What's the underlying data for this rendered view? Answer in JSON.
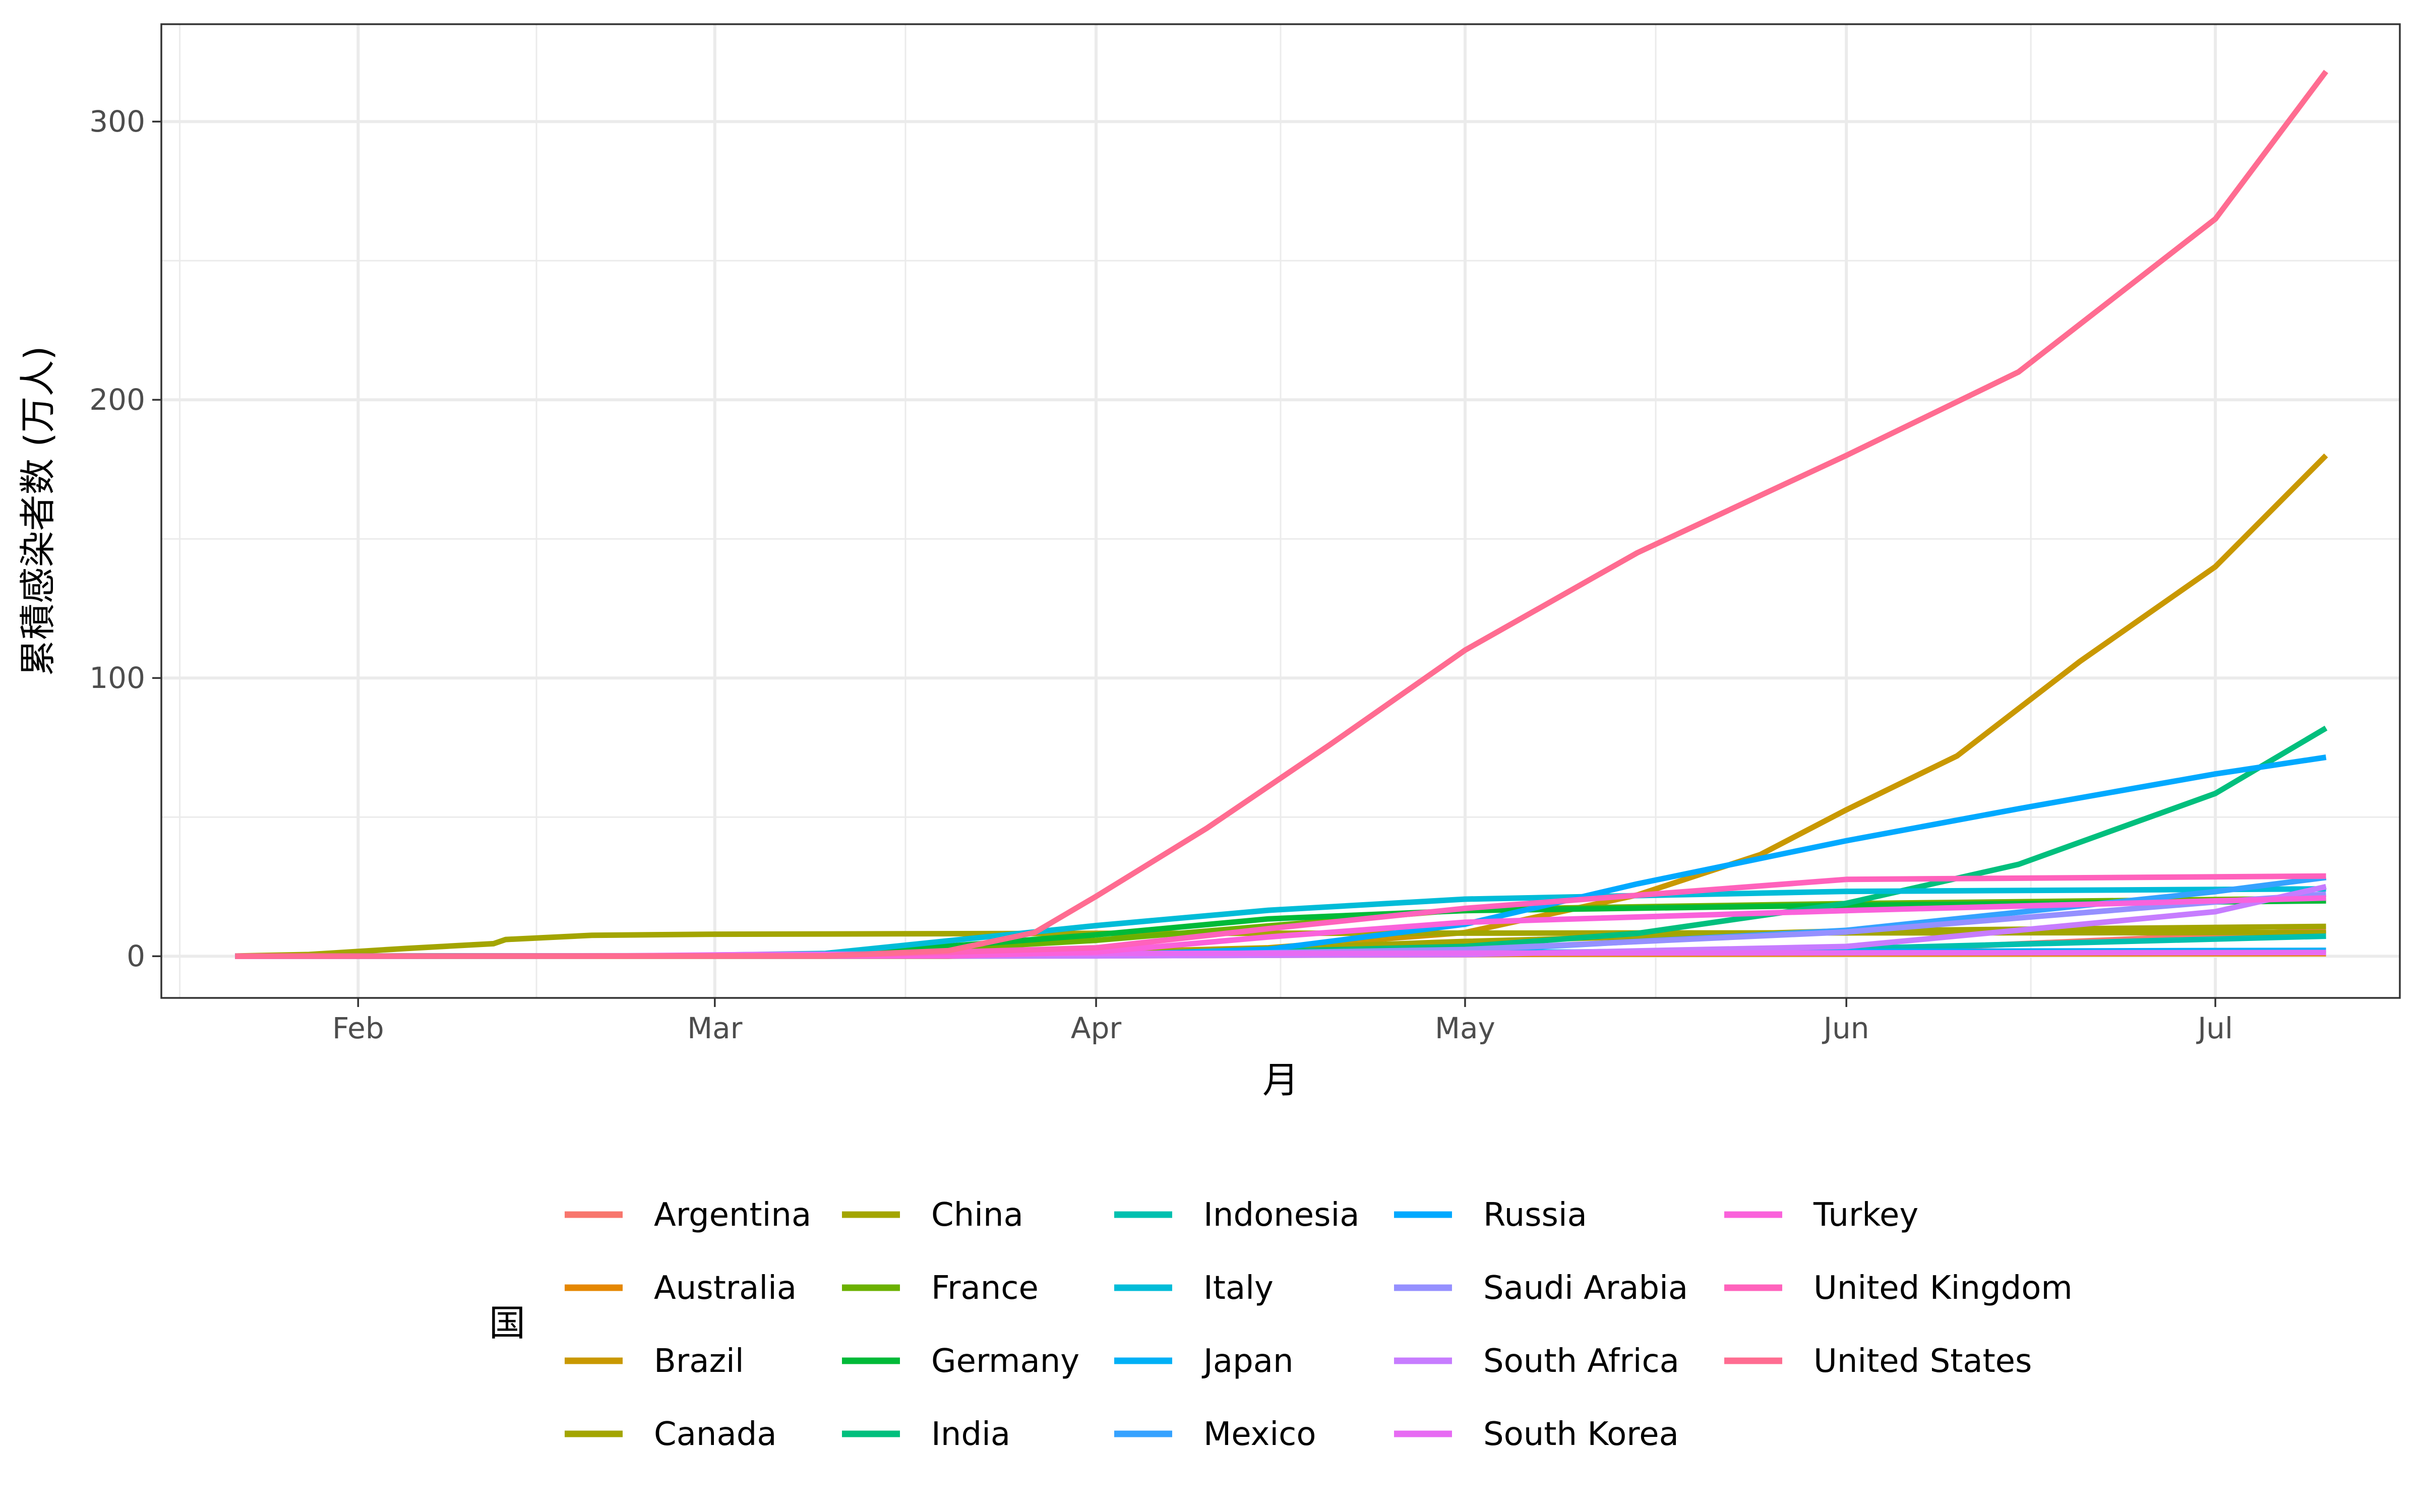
{
  "chart_data": {
    "type": "line",
    "xlabel": "月",
    "ylabel": "累積感染者数 (万人)",
    "ylim": [
      -15,
      335
    ],
    "xlim": [
      "2020-01-16",
      "2020-07-16"
    ],
    "yticks": [
      0,
      100,
      200,
      300
    ],
    "xticks": [
      {
        "date": "2020-02-01",
        "label": "Feb"
      },
      {
        "date": "2020-03-01",
        "label": "Mar"
      },
      {
        "date": "2020-04-01",
        "label": "Apr"
      },
      {
        "date": "2020-05-01",
        "label": "May"
      },
      {
        "date": "2020-06-01",
        "label": "Jun"
      },
      {
        "date": "2020-07-01",
        "label": "Jul"
      }
    ],
    "grid": true,
    "legend_title": "国",
    "legend_position": "bottom",
    "series": [
      {
        "name": "Argentina",
        "color": "#F8766D",
        "points": [
          [
            "2020-01-22",
            0
          ],
          [
            "2020-03-20",
            0
          ],
          [
            "2020-05-01",
            0.5
          ],
          [
            "2020-06-01",
            1.7
          ],
          [
            "2020-07-10",
            9.3
          ]
        ]
      },
      {
        "name": "Australia",
        "color": "#E58700",
        "points": [
          [
            "2020-01-22",
            0
          ],
          [
            "2020-03-20",
            0.1
          ],
          [
            "2020-04-10",
            0.6
          ],
          [
            "2020-07-10",
            0.9
          ]
        ]
      },
      {
        "name": "Brazil",
        "color": "#C99800",
        "points": [
          [
            "2020-01-22",
            0
          ],
          [
            "2020-03-20",
            0
          ],
          [
            "2020-04-15",
            3
          ],
          [
            "2020-05-01",
            8.5
          ],
          [
            "2020-05-15",
            22
          ],
          [
            "2020-05-25",
            36.5
          ],
          [
            "2020-06-01",
            52.6
          ],
          [
            "2020-06-10",
            72
          ],
          [
            "2020-06-20",
            106
          ],
          [
            "2020-07-01",
            140
          ],
          [
            "2020-07-10",
            180
          ]
        ]
      },
      {
        "name": "Canada",
        "color": "#A3A500",
        "points": [
          [
            "2020-01-22",
            0
          ],
          [
            "2020-03-20",
            0.1
          ],
          [
            "2020-04-15",
            2.8
          ],
          [
            "2020-05-01",
            5.3
          ],
          [
            "2020-06-01",
            9.1
          ],
          [
            "2020-07-10",
            10.7
          ]
        ]
      },
      {
        "name": "China",
        "color": "#A3A500",
        "points": [
          [
            "2020-01-22",
            0.05
          ],
          [
            "2020-01-28",
            0.6
          ],
          [
            "2020-02-05",
            2.8
          ],
          [
            "2020-02-12",
            4.5
          ],
          [
            "2020-02-13",
            6.0
          ],
          [
            "2020-02-20",
            7.5
          ],
          [
            "2020-03-01",
            7.9
          ],
          [
            "2020-04-01",
            8.2
          ],
          [
            "2020-07-10",
            8.5
          ]
        ]
      },
      {
        "name": "France",
        "color": "#6BB100",
        "points": [
          [
            "2020-01-22",
            0
          ],
          [
            "2020-03-10",
            0.2
          ],
          [
            "2020-04-01",
            5.7
          ],
          [
            "2020-05-01",
            16.8
          ],
          [
            "2020-06-01",
            18.9
          ],
          [
            "2020-07-10",
            20.8
          ]
        ]
      },
      {
        "name": "Germany",
        "color": "#00BA38",
        "points": [
          [
            "2020-01-22",
            0
          ],
          [
            "2020-03-10",
            0.2
          ],
          [
            "2020-04-01",
            7.7
          ],
          [
            "2020-04-15",
            13.4
          ],
          [
            "2020-05-01",
            16.4
          ],
          [
            "2020-06-01",
            18.3
          ],
          [
            "2020-07-10",
            19.9
          ]
        ]
      },
      {
        "name": "India",
        "color": "#00BF7D",
        "points": [
          [
            "2020-01-22",
            0
          ],
          [
            "2020-04-01",
            0.2
          ],
          [
            "2020-05-01",
            3.5
          ],
          [
            "2020-05-15",
            8.2
          ],
          [
            "2020-06-01",
            19
          ],
          [
            "2020-06-15",
            33
          ],
          [
            "2020-07-01",
            58.5
          ],
          [
            "2020-07-10",
            82
          ]
        ]
      },
      {
        "name": "Indonesia",
        "color": "#00C0AF",
        "points": [
          [
            "2020-01-22",
            0
          ],
          [
            "2020-04-01",
            0.2
          ],
          [
            "2020-05-01",
            1
          ],
          [
            "2020-06-01",
            2.7
          ],
          [
            "2020-07-10",
            7.2
          ]
        ]
      },
      {
        "name": "Italy",
        "color": "#00BCD8",
        "points": [
          [
            "2020-01-22",
            0
          ],
          [
            "2020-02-25",
            0.03
          ],
          [
            "2020-03-10",
            1
          ],
          [
            "2020-04-01",
            11
          ],
          [
            "2020-04-15",
            16.5
          ],
          [
            "2020-05-01",
            20.5
          ],
          [
            "2020-06-01",
            23.3
          ],
          [
            "2020-07-10",
            24.2
          ]
        ]
      },
      {
        "name": "Japan",
        "color": "#00B0F6",
        "points": [
          [
            "2020-01-22",
            0
          ],
          [
            "2020-04-01",
            0.2
          ],
          [
            "2020-05-01",
            1.4
          ],
          [
            "2020-06-01",
            1.7
          ],
          [
            "2020-07-10",
            2.1
          ]
        ]
      },
      {
        "name": "Mexico",
        "color": "#35A2FF",
        "points": [
          [
            "2020-01-22",
            0
          ],
          [
            "2020-04-01",
            0.1
          ],
          [
            "2020-05-01",
            2
          ],
          [
            "2020-06-01",
            9.3
          ],
          [
            "2020-07-01",
            23.2
          ],
          [
            "2020-07-10",
            28.3
          ]
        ]
      },
      {
        "name": "Russia",
        "color": "#00A9FF",
        "points": [
          [
            "2020-01-22",
            0
          ],
          [
            "2020-04-01",
            0.3
          ],
          [
            "2020-04-15",
            2.5
          ],
          [
            "2020-05-01",
            11.5
          ],
          [
            "2020-05-15",
            26
          ],
          [
            "2020-06-01",
            41.5
          ],
          [
            "2020-06-15",
            53
          ],
          [
            "2020-07-01",
            65.5
          ],
          [
            "2020-07-10",
            71.5
          ]
        ]
      },
      {
        "name": "Saudi Arabia",
        "color": "#9590FF",
        "points": [
          [
            "2020-01-22",
            0
          ],
          [
            "2020-04-01",
            0.2
          ],
          [
            "2020-05-01",
            2.4
          ],
          [
            "2020-06-01",
            8.7
          ],
          [
            "2020-07-01",
            19.5
          ],
          [
            "2020-07-10",
            22.3
          ]
        ]
      },
      {
        "name": "South Africa",
        "color": "#C77CFF",
        "points": [
          [
            "2020-01-22",
            0
          ],
          [
            "2020-04-01",
            0.1
          ],
          [
            "2020-05-01",
            0.6
          ],
          [
            "2020-06-01",
            3.5
          ],
          [
            "2020-07-01",
            16
          ],
          [
            "2020-07-10",
            25
          ]
        ]
      },
      {
        "name": "South Korea",
        "color": "#E76BF3",
        "points": [
          [
            "2020-01-22",
            0
          ],
          [
            "2020-02-20",
            0.01
          ],
          [
            "2020-03-05",
            0.6
          ],
          [
            "2020-04-01",
            1
          ],
          [
            "2020-07-10",
            1.3
          ]
        ]
      },
      {
        "name": "Turkey",
        "color": "#FA62DB",
        "points": [
          [
            "2020-01-22",
            0
          ],
          [
            "2020-03-20",
            0.1
          ],
          [
            "2020-04-01",
            1.5
          ],
          [
            "2020-04-15",
            6.9
          ],
          [
            "2020-05-01",
            12.2
          ],
          [
            "2020-06-01",
            16.4
          ],
          [
            "2020-07-10",
            20.9
          ]
        ]
      },
      {
        "name": "United Kingdom",
        "color": "#FF62BC",
        "points": [
          [
            "2020-01-22",
            0
          ],
          [
            "2020-03-10",
            0.1
          ],
          [
            "2020-04-01",
            3
          ],
          [
            "2020-04-15",
            9.9
          ],
          [
            "2020-05-01",
            17.2
          ],
          [
            "2020-06-01",
            27.6
          ],
          [
            "2020-07-10",
            28.8
          ]
        ]
      },
      {
        "name": "United States",
        "color": "#FF6C91",
        "points": [
          [
            "2020-01-22",
            0
          ],
          [
            "2020-03-10",
            0.1
          ],
          [
            "2020-03-20",
            2
          ],
          [
            "2020-03-27",
            8.5
          ],
          [
            "2020-04-01",
            21.5
          ],
          [
            "2020-04-10",
            46
          ],
          [
            "2020-04-20",
            76
          ],
          [
            "2020-05-01",
            110
          ],
          [
            "2020-05-15",
            145
          ],
          [
            "2020-06-01",
            180
          ],
          [
            "2020-06-15",
            210
          ],
          [
            "2020-07-01",
            265
          ],
          [
            "2020-07-10",
            318
          ]
        ]
      }
    ]
  }
}
